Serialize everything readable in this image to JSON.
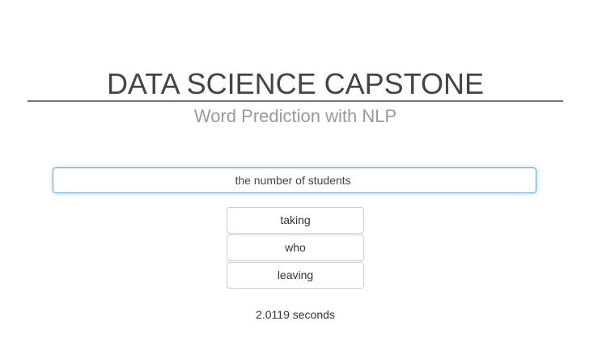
{
  "header": {
    "title": "DATA SCIENCE CAPSTONE",
    "subtitle": "Word Prediction with NLP"
  },
  "input": {
    "value": "the number of students "
  },
  "predictions": [
    {
      "label": "taking"
    },
    {
      "label": "who"
    },
    {
      "label": "leaving"
    }
  ],
  "timing": {
    "text": "2.0119 seconds"
  },
  "colors": {
    "input_focus_border": "#66afe9",
    "title_rule": "#777777"
  }
}
